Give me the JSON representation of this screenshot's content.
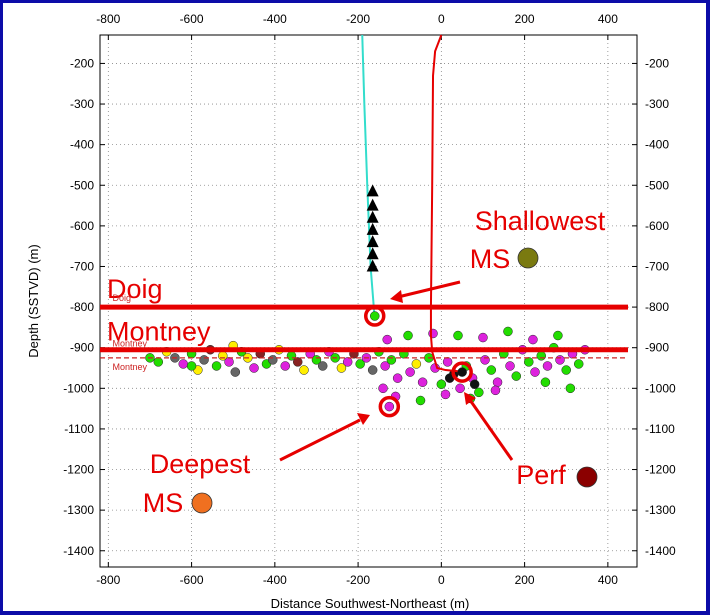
{
  "chart_data": {
    "type": "scatter",
    "title": "",
    "xlabel": "Distance Southwest-Northeast  (m)",
    "ylabel": "Depth (SSTVD) (m)",
    "xlim": [
      -820,
      470
    ],
    "ylim": [
      -1440,
      -130
    ],
    "x_ticks": [
      -800,
      -600,
      -400,
      -200,
      0,
      200,
      400
    ],
    "y_ticks": [
      -200,
      -300,
      -400,
      -500,
      -600,
      -700,
      -800,
      -900,
      -1000,
      -1100,
      -1200,
      -1300,
      -1400
    ],
    "grid": "dotted",
    "tick_label_format": "integer",
    "wells": {
      "monitor_well": [
        [
          -190,
          -130
        ],
        [
          -185,
          -300
        ],
        [
          -178,
          -500
        ],
        [
          -170,
          -700
        ],
        [
          -160,
          -830
        ]
      ],
      "treatment_well": [
        [
          0,
          -130
        ],
        [
          -15,
          -170
        ],
        [
          -20,
          -230
        ],
        [
          -22,
          -500
        ],
        [
          -25,
          -800
        ],
        [
          -25,
          -870
        ],
        [
          -22,
          -910
        ],
        [
          -10,
          -950
        ],
        [
          10,
          -955
        ],
        [
          40,
          -958
        ]
      ]
    },
    "geophones": [
      [
        -165,
        -515
      ],
      [
        -165,
        -550
      ],
      [
        -165,
        -580
      ],
      [
        -165,
        -610
      ],
      [
        -165,
        -640
      ],
      [
        -165,
        -670
      ],
      [
        -165,
        -700
      ]
    ],
    "formation_tops": [
      {
        "label": "Doig",
        "depth": -800
      },
      {
        "label": "Montney",
        "depth": -905
      }
    ],
    "formation_small_labels": [
      {
        "label": "Doig",
        "x": -790,
        "depth": -785
      },
      {
        "label": "Montney",
        "x": -790,
        "depth": -897
      },
      {
        "label": "Montney",
        "x": -790,
        "depth": -955
      }
    ],
    "montney_dashed_depth": -925,
    "event_cloud": {
      "x_range": [
        -700,
        350
      ],
      "depth_center": -925,
      "depth_spread": 35,
      "colors": [
        "#22dd00",
        "#dd22dd",
        "#ffee00",
        "#666666",
        "#882222",
        "#111111"
      ],
      "points": [
        [
          -680,
          -935,
          0
        ],
        [
          -660,
          -910,
          2
        ],
        [
          -640,
          -925,
          3
        ],
        [
          -620,
          -940,
          1
        ],
        [
          -600,
          -915,
          0
        ],
        [
          -585,
          -955,
          2
        ],
        [
          -570,
          -930,
          3
        ],
        [
          -555,
          -905,
          4
        ],
        [
          -540,
          -945,
          0
        ],
        [
          -525,
          -920,
          2
        ],
        [
          -510,
          -935,
          1
        ],
        [
          -495,
          -960,
          3
        ],
        [
          -480,
          -910,
          0
        ],
        [
          -465,
          -925,
          2
        ],
        [
          -450,
          -950,
          1
        ],
        [
          -435,
          -915,
          4
        ],
        [
          -420,
          -940,
          0
        ],
        [
          -405,
          -930,
          3
        ],
        [
          -390,
          -905,
          2
        ],
        [
          -375,
          -945,
          1
        ],
        [
          -360,
          -920,
          0
        ],
        [
          -345,
          -935,
          4
        ],
        [
          -330,
          -955,
          2
        ],
        [
          -315,
          -915,
          1
        ],
        [
          -300,
          -930,
          0
        ],
        [
          -285,
          -945,
          3
        ],
        [
          -270,
          -910,
          1
        ],
        [
          -255,
          -925,
          0
        ],
        [
          -240,
          -950,
          2
        ],
        [
          -225,
          -935,
          1
        ],
        [
          -210,
          -915,
          4
        ],
        [
          -195,
          -940,
          0
        ],
        [
          -180,
          -925,
          1
        ],
        [
          -165,
          -955,
          3
        ],
        [
          -150,
          -910,
          0
        ],
        [
          -135,
          -945,
          1
        ],
        [
          -120,
          -930,
          0
        ],
        [
          -105,
          -975,
          1
        ],
        [
          -90,
          -915,
          0
        ],
        [
          -75,
          -960,
          1
        ],
        [
          -60,
          -940,
          2
        ],
        [
          -45,
          -985,
          1
        ],
        [
          -30,
          -925,
          0
        ],
        [
          -15,
          -950,
          1
        ],
        [
          0,
          -990,
          0
        ],
        [
          15,
          -935,
          1
        ],
        [
          30,
          -965,
          5
        ],
        [
          45,
          -1000,
          1
        ],
        [
          60,
          -945,
          0
        ],
        [
          75,
          -975,
          1
        ],
        [
          90,
          -1010,
          0
        ],
        [
          105,
          -930,
          1
        ],
        [
          120,
          -955,
          0
        ],
        [
          135,
          -985,
          1
        ],
        [
          150,
          -915,
          0
        ],
        [
          165,
          -945,
          1
        ],
        [
          180,
          -970,
          0
        ],
        [
          195,
          -905,
          1
        ],
        [
          210,
          -935,
          0
        ],
        [
          225,
          -960,
          1
        ],
        [
          240,
          -920,
          0
        ],
        [
          255,
          -945,
          1
        ],
        [
          270,
          -900,
          0
        ],
        [
          285,
          -930,
          1
        ],
        [
          300,
          -955,
          0
        ],
        [
          315,
          -915,
          1
        ],
        [
          330,
          -940,
          0
        ],
        [
          345,
          -905,
          1
        ],
        [
          -130,
          -880,
          1
        ],
        [
          -80,
          -870,
          0
        ],
        [
          -20,
          -865,
          1
        ],
        [
          40,
          -870,
          0
        ],
        [
          100,
          -875,
          1
        ],
        [
          160,
          -860,
          0
        ],
        [
          220,
          -880,
          1
        ],
        [
          280,
          -870,
          0
        ],
        [
          -110,
          -1020,
          1
        ],
        [
          -50,
          -1030,
          0
        ],
        [
          10,
          -1015,
          1
        ],
        [
          70,
          -1025,
          0
        ],
        [
          130,
          -1005,
          1
        ],
        [
          -140,
          -1000,
          1
        ],
        [
          80,
          -990,
          5
        ],
        [
          20,
          -975,
          5
        ],
        [
          250,
          -985,
          0
        ],
        [
          310,
          -1000,
          0
        ],
        [
          -500,
          -895,
          2
        ],
        [
          -600,
          -945,
          0
        ],
        [
          -700,
          -925,
          0
        ]
      ]
    },
    "highlighted_events": [
      {
        "x": -160,
        "depth": -822,
        "color": "#22dd00"
      },
      {
        "x": -125,
        "depth": -1045,
        "color": "#dd22dd"
      },
      {
        "x": 50,
        "depth": -960,
        "color": "#111111"
      }
    ],
    "callouts": [
      {
        "lines": [
          "Shallowest",
          "MS"
        ],
        "marker_color": "#7a7a10"
      },
      {
        "lines": [
          "Deepest",
          "MS"
        ],
        "marker_color": "#f07020"
      },
      {
        "lines": [
          "Perf"
        ],
        "marker_color": "#8b0000"
      }
    ]
  }
}
